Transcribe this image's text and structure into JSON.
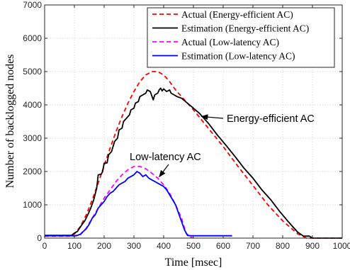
{
  "chart_data": {
    "type": "line",
    "xlabel": "Time [msec]",
    "ylabel": "Number of backlogged nodes",
    "xlim": [
      0,
      1000
    ],
    "ylim": [
      0,
      7000
    ],
    "x_ticks": [
      0,
      100,
      200,
      300,
      400,
      500,
      600,
      700,
      800,
      900,
      1000
    ],
    "y_ticks": [
      0,
      1000,
      2000,
      3000,
      4000,
      5000,
      6000,
      7000
    ],
    "grid": true,
    "legend_position": "top-right",
    "series": [
      {
        "name": "Actual (Energy-efficient AC)",
        "color": "#ff0000",
        "dash": "dashed",
        "points": [
          [
            0,
            60
          ],
          [
            80,
            60
          ],
          [
            100,
            120
          ],
          [
            120,
            350
          ],
          [
            140,
            700
          ],
          [
            160,
            1150
          ],
          [
            180,
            1650
          ],
          [
            200,
            2180
          ],
          [
            220,
            2700
          ],
          [
            240,
            3200
          ],
          [
            260,
            3650
          ],
          [
            280,
            4050
          ],
          [
            300,
            4400
          ],
          [
            320,
            4700
          ],
          [
            340,
            4900
          ],
          [
            360,
            5000
          ],
          [
            380,
            5000
          ],
          [
            400,
            4900
          ],
          [
            420,
            4700
          ],
          [
            440,
            4450
          ],
          [
            460,
            4250
          ],
          [
            500,
            3850
          ],
          [
            550,
            3300
          ],
          [
            600,
            2750
          ],
          [
            650,
            2150
          ],
          [
            700,
            1580
          ],
          [
            750,
            1000
          ],
          [
            800,
            520
          ],
          [
            850,
            130
          ],
          [
            880,
            0
          ],
          [
            1000,
            0
          ]
        ]
      },
      {
        "name": "Estimation (Energy-efficient AC)",
        "color": "#000000",
        "dash": "solid",
        "points": [
          [
            0,
            80
          ],
          [
            90,
            80
          ],
          [
            100,
            150
          ],
          [
            110,
            200
          ],
          [
            125,
            400
          ],
          [
            135,
            520
          ],
          [
            145,
            700
          ],
          [
            155,
            900
          ],
          [
            165,
            1150
          ],
          [
            175,
            1500
          ],
          [
            180,
            1900
          ],
          [
            190,
            1920
          ],
          [
            195,
            2000
          ],
          [
            200,
            2250
          ],
          [
            210,
            2260
          ],
          [
            215,
            2500
          ],
          [
            225,
            2600
          ],
          [
            235,
            2900
          ],
          [
            245,
            3000
          ],
          [
            250,
            3250
          ],
          [
            260,
            3300
          ],
          [
            265,
            3500
          ],
          [
            275,
            3600
          ],
          [
            285,
            3700
          ],
          [
            290,
            3850
          ],
          [
            300,
            3900
          ],
          [
            305,
            4050
          ],
          [
            315,
            4100
          ],
          [
            320,
            4250
          ],
          [
            330,
            4300
          ],
          [
            340,
            4350
          ],
          [
            345,
            4450
          ],
          [
            355,
            4400
          ],
          [
            365,
            4150
          ],
          [
            370,
            4300
          ],
          [
            380,
            4350
          ],
          [
            385,
            4450
          ],
          [
            390,
            4500
          ],
          [
            395,
            4420
          ],
          [
            400,
            4480
          ],
          [
            410,
            4400
          ],
          [
            420,
            4450
          ],
          [
            425,
            4350
          ],
          [
            435,
            4300
          ],
          [
            445,
            4250
          ],
          [
            460,
            4200
          ],
          [
            480,
            4050
          ],
          [
            500,
            3900
          ],
          [
            520,
            3750
          ],
          [
            550,
            3450
          ],
          [
            580,
            3100
          ],
          [
            610,
            2780
          ],
          [
            640,
            2450
          ],
          [
            670,
            2100
          ],
          [
            700,
            1800
          ],
          [
            730,
            1450
          ],
          [
            760,
            1150
          ],
          [
            790,
            800
          ],
          [
            820,
            480
          ],
          [
            850,
            180
          ],
          [
            870,
            60
          ],
          [
            890,
            60
          ],
          [
            900,
            0
          ],
          [
            1000,
            0
          ]
        ]
      },
      {
        "name": "Actual (Low-latency AC)",
        "color": "#ff00ff",
        "dash": "dashed",
        "points": [
          [
            0,
            60
          ],
          [
            100,
            60
          ],
          [
            120,
            100
          ],
          [
            140,
            300
          ],
          [
            160,
            600
          ],
          [
            180,
            900
          ],
          [
            200,
            1200
          ],
          [
            220,
            1450
          ],
          [
            240,
            1700
          ],
          [
            260,
            1900
          ],
          [
            280,
            2050
          ],
          [
            300,
            2150
          ],
          [
            320,
            2150
          ],
          [
            340,
            2080
          ],
          [
            360,
            1950
          ],
          [
            380,
            1800
          ],
          [
            400,
            1600
          ],
          [
            420,
            1350
          ],
          [
            440,
            1000
          ],
          [
            460,
            600
          ],
          [
            475,
            150
          ],
          [
            490,
            30
          ],
          [
            500,
            0
          ]
        ]
      },
      {
        "name": "Estimation (Low-latency AC)",
        "color": "#0000ff",
        "dash": "solid",
        "points": [
          [
            0,
            70
          ],
          [
            100,
            70
          ],
          [
            110,
            80
          ],
          [
            120,
            120
          ],
          [
            130,
            200
          ],
          [
            140,
            280
          ],
          [
            150,
            420
          ],
          [
            160,
            600
          ],
          [
            170,
            700
          ],
          [
            180,
            900
          ],
          [
            190,
            1000
          ],
          [
            200,
            1100
          ],
          [
            210,
            1250
          ],
          [
            220,
            1350
          ],
          [
            230,
            1400
          ],
          [
            240,
            1500
          ],
          [
            250,
            1600
          ],
          [
            260,
            1650
          ],
          [
            270,
            1700
          ],
          [
            280,
            1800
          ],
          [
            290,
            1850
          ],
          [
            300,
            1900
          ],
          [
            310,
            2000
          ],
          [
            320,
            1950
          ],
          [
            330,
            1850
          ],
          [
            340,
            1900
          ],
          [
            350,
            1800
          ],
          [
            360,
            1750
          ],
          [
            370,
            1700
          ],
          [
            380,
            1650
          ],
          [
            390,
            1600
          ],
          [
            400,
            1550
          ],
          [
            410,
            1450
          ],
          [
            420,
            1300
          ],
          [
            430,
            1150
          ],
          [
            440,
            1000
          ],
          [
            450,
            750
          ],
          [
            460,
            500
          ],
          [
            470,
            250
          ],
          [
            480,
            80
          ],
          [
            490,
            70
          ],
          [
            630,
            70
          ]
        ]
      }
    ],
    "annotations": [
      {
        "text": "Energy-efficient AC",
        "arrow_to": [
          520,
          3650
        ]
      },
      {
        "text": "Low-latency AC",
        "arrow_to": [
          390,
          1800
        ]
      }
    ]
  }
}
